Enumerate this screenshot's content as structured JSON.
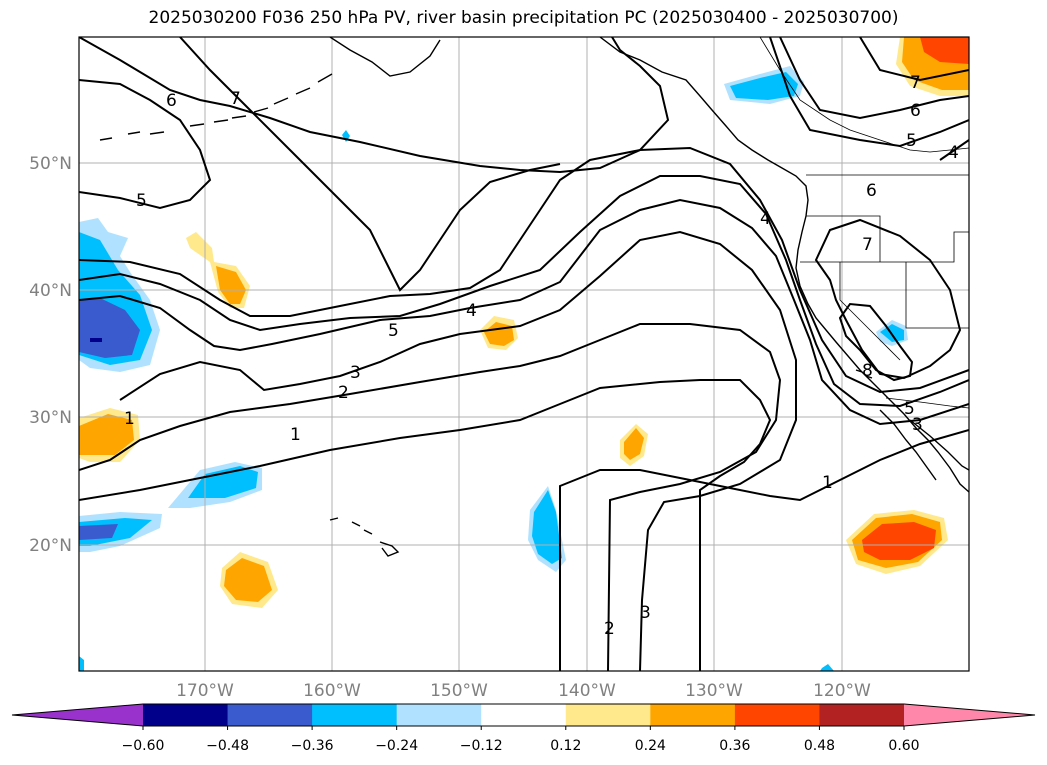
{
  "title": "2025030200 F036 250 hPa PV, river basin precipitation PC (2025030400 - 2025030700)",
  "map": {
    "lat_labels": [
      "50°N",
      "40°N",
      "30°N",
      "20°N"
    ],
    "lon_labels": [
      "170°W",
      "160°W",
      "150°W",
      "140°W",
      "130°W",
      "120°W"
    ],
    "contour_labels": [
      "6",
      "7",
      "5",
      "5",
      "4",
      "3",
      "2",
      "1",
      "1",
      "1",
      "2",
      "3",
      "4",
      "5",
      "6",
      "7",
      "6",
      "5",
      "4",
      "7",
      "8",
      "3"
    ]
  },
  "colorbar": {
    "ticks": [
      "−0.60",
      "−0.48",
      "−0.36",
      "−0.24",
      "−0.12",
      "0.12",
      "0.24",
      "0.36",
      "0.48",
      "0.60"
    ],
    "colors": [
      "#9932cc",
      "#00008b",
      "#3a5bcd",
      "#00bfff",
      "#b0e2ff",
      "#ffffff",
      "#ffe98c",
      "#ffa500",
      "#ff4500",
      "#b22222",
      "#ff88aa"
    ]
  }
}
